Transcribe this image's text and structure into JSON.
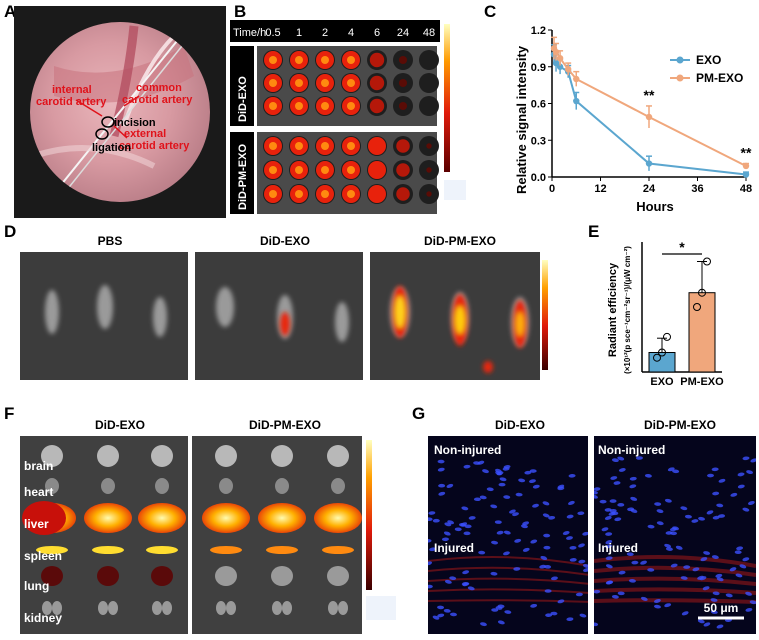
{
  "panels": {
    "A": {
      "letter": "A",
      "labels": {
        "internal": "internal",
        "carotid_artery_1": "carotid artery",
        "common": "common",
        "carotid_artery_2": "carotid artery",
        "incision": "incision",
        "external": "external",
        "carotid_artery_3": "carotid artery",
        "ligation": "ligation"
      }
    },
    "B": {
      "letter": "B",
      "time_label": "Time/h",
      "times": [
        "0.5",
        "1",
        "2",
        "4",
        "6",
        "24",
        "48"
      ],
      "groups": [
        "DiD-EXO",
        "DiD-PM-EXO"
      ],
      "intensity": {
        "DiD-EXO": [
          1.0,
          0.95,
          0.9,
          0.85,
          0.6,
          0.25,
          0.02
        ],
        "DiD-PM-EXO": [
          1.0,
          0.98,
          0.95,
          0.85,
          0.8,
          0.55,
          0.1
        ]
      }
    },
    "C": {
      "letter": "C"
    },
    "D": {
      "letter": "D",
      "groups": [
        "PBS",
        "DiD-EXO",
        "DiD-PM-EXO"
      ]
    },
    "E": {
      "letter": "E"
    },
    "F": {
      "letter": "F",
      "groups": [
        "DiD-EXO",
        "DiD-PM-EXO"
      ],
      "organs": [
        "brain",
        "heart",
        "liver",
        "spleen",
        "lung",
        "kidney"
      ]
    },
    "G": {
      "letter": "G",
      "groups": [
        "DiD-EXO",
        "DiD-PM-EXO"
      ],
      "top_label": "Non-injured",
      "bottom_label": "Injured",
      "scale_bar": "50 μm"
    }
  },
  "chart_data": [
    {
      "panel": "C",
      "type": "line",
      "xlabel": "Hours",
      "ylabel": "Relative signal intensity",
      "xlim": [
        0,
        48
      ],
      "ylim": [
        0,
        1.2
      ],
      "xticks": [
        0,
        12,
        24,
        36,
        48
      ],
      "yticks": [
        0.0,
        0.3,
        0.6,
        0.9,
        1.2
      ],
      "legend_position": "top-right",
      "series": [
        {
          "name": "EXO",
          "color": "#5ba6cf",
          "x": [
            0.5,
            1,
            2,
            4,
            6,
            24,
            48
          ],
          "y": [
            1.0,
            0.93,
            0.9,
            0.86,
            0.62,
            0.11,
            0.02
          ],
          "err": [
            0.08,
            0.07,
            0.06,
            0.05,
            0.07,
            0.06,
            0.02
          ]
        },
        {
          "name": "PM-EXO",
          "color": "#f0a77c",
          "x": [
            0.5,
            1,
            2,
            4,
            6,
            24,
            48
          ],
          "y": [
            1.05,
            1.02,
            0.97,
            0.88,
            0.8,
            0.49,
            0.09
          ],
          "err": [
            0.09,
            0.07,
            0.06,
            0.05,
            0.06,
            0.09,
            0.02
          ]
        }
      ],
      "annotations": [
        {
          "x": 24,
          "text": "**"
        },
        {
          "x": 48,
          "text": "**"
        }
      ]
    },
    {
      "panel": "E",
      "type": "bar",
      "ylabel_line1": "Radiant efficiency",
      "ylabel_line2": "(×10¹²(p sce⁻¹cm⁻²sr⁻¹)/(μW cm⁻²)",
      "categories": [
        "EXO",
        "PM-EXO"
      ],
      "values": [
        0.75,
        3.05
      ],
      "err": [
        0.55,
        1.2
      ],
      "points": [
        [
          0.55,
          0.75,
          1.35
        ],
        [
          2.5,
          3.05,
          4.25
        ]
      ],
      "colors": [
        "#5ba6cf",
        "#f0a77c"
      ],
      "ylim": [
        0,
        5
      ],
      "annotation": "*"
    }
  ]
}
